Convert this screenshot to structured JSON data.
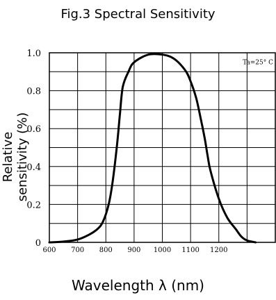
{
  "chart_data": {
    "type": "line",
    "title": "Fig.3 Spectral Sensitivity",
    "xlabel": "Wavelength  λ  (nm)",
    "ylabel": "Relative sensitivity  (%)",
    "annotation": "Ta=25° C",
    "xlim": [
      600,
      1400
    ],
    "ylim": [
      0,
      1.0
    ],
    "x_ticks": [
      600,
      700,
      800,
      900,
      1000,
      1100,
      1200
    ],
    "x_tick_labels": [
      "600",
      "700",
      "800",
      "900",
      "1000",
      "1100",
      "1200"
    ],
    "y_ticks": [
      0,
      0.2,
      0.4,
      0.6,
      0.8,
      1.0
    ],
    "y_tick_labels": [
      "0",
      "0.2",
      "0.4",
      "0.6",
      "0.8",
      "1.0"
    ],
    "grid": true,
    "series": [
      {
        "color": "#000000",
        "x": [
          600,
          650,
          700,
          740,
          770,
          790,
          810,
          825,
          840,
          850,
          860,
          880,
          900,
          950,
          1000,
          1040,
          1080,
          1100,
          1120,
          1135,
          1150,
          1160,
          1170,
          1200,
          1230,
          1260,
          1280,
          1300,
          1330
        ],
        "y": [
          0.0,
          0.004,
          0.015,
          0.04,
          0.07,
          0.11,
          0.2,
          0.33,
          0.52,
          0.68,
          0.82,
          0.9,
          0.95,
          0.99,
          0.99,
          0.97,
          0.91,
          0.85,
          0.76,
          0.66,
          0.55,
          0.46,
          0.38,
          0.23,
          0.13,
          0.07,
          0.03,
          0.01,
          0.0
        ]
      }
    ]
  }
}
